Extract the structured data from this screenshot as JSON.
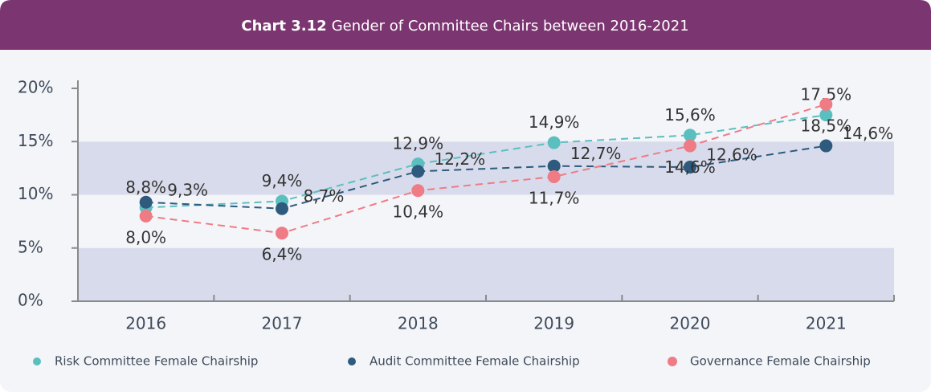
{
  "chart_data": {
    "type": "line",
    "title_label": "Chart 3.12",
    "title": "Gender of Committee Chairs between 2016-2021",
    "categories": [
      "2016",
      "2017",
      "2018",
      "2019",
      "2020",
      "2021"
    ],
    "series": [
      {
        "name": "Risk Committee Female Chairship",
        "color": "#5bbfc0",
        "values": [
          8.8,
          9.4,
          12.9,
          14.9,
          15.6,
          17.5
        ],
        "value_labels": [
          "8,8%",
          "9,4%",
          "12,9%",
          "14,9%",
          "15,6%",
          "17,5%"
        ]
      },
      {
        "name": "Audit Committee Female Chairship",
        "color": "#2e5a7e",
        "values": [
          9.3,
          8.7,
          12.2,
          12.7,
          12.6,
          14.6
        ],
        "value_labels": [
          "9,3%",
          "8,7%",
          "12,2%",
          "12,7%",
          "12,6%",
          "14,6%"
        ]
      },
      {
        "name": "Governance Female Chairship",
        "color": "#ef7b85",
        "values": [
          8.0,
          6.4,
          10.4,
          11.7,
          14.6,
          18.5
        ],
        "value_labels": [
          "8,0%",
          "6,4%",
          "10,4%",
          "11,7%",
          "14,6%",
          "18,5%"
        ]
      }
    ],
    "ylim": [
      0,
      20
    ],
    "yticks": [
      {
        "value": 0,
        "label": "0%"
      },
      {
        "value": 5,
        "label": "5%"
      },
      {
        "value": 10,
        "label": "10%"
      },
      {
        "value": 15,
        "label": "15%"
      },
      {
        "value": 20,
        "label": "20%"
      }
    ],
    "grid": "bands",
    "legend": "bottom"
  }
}
